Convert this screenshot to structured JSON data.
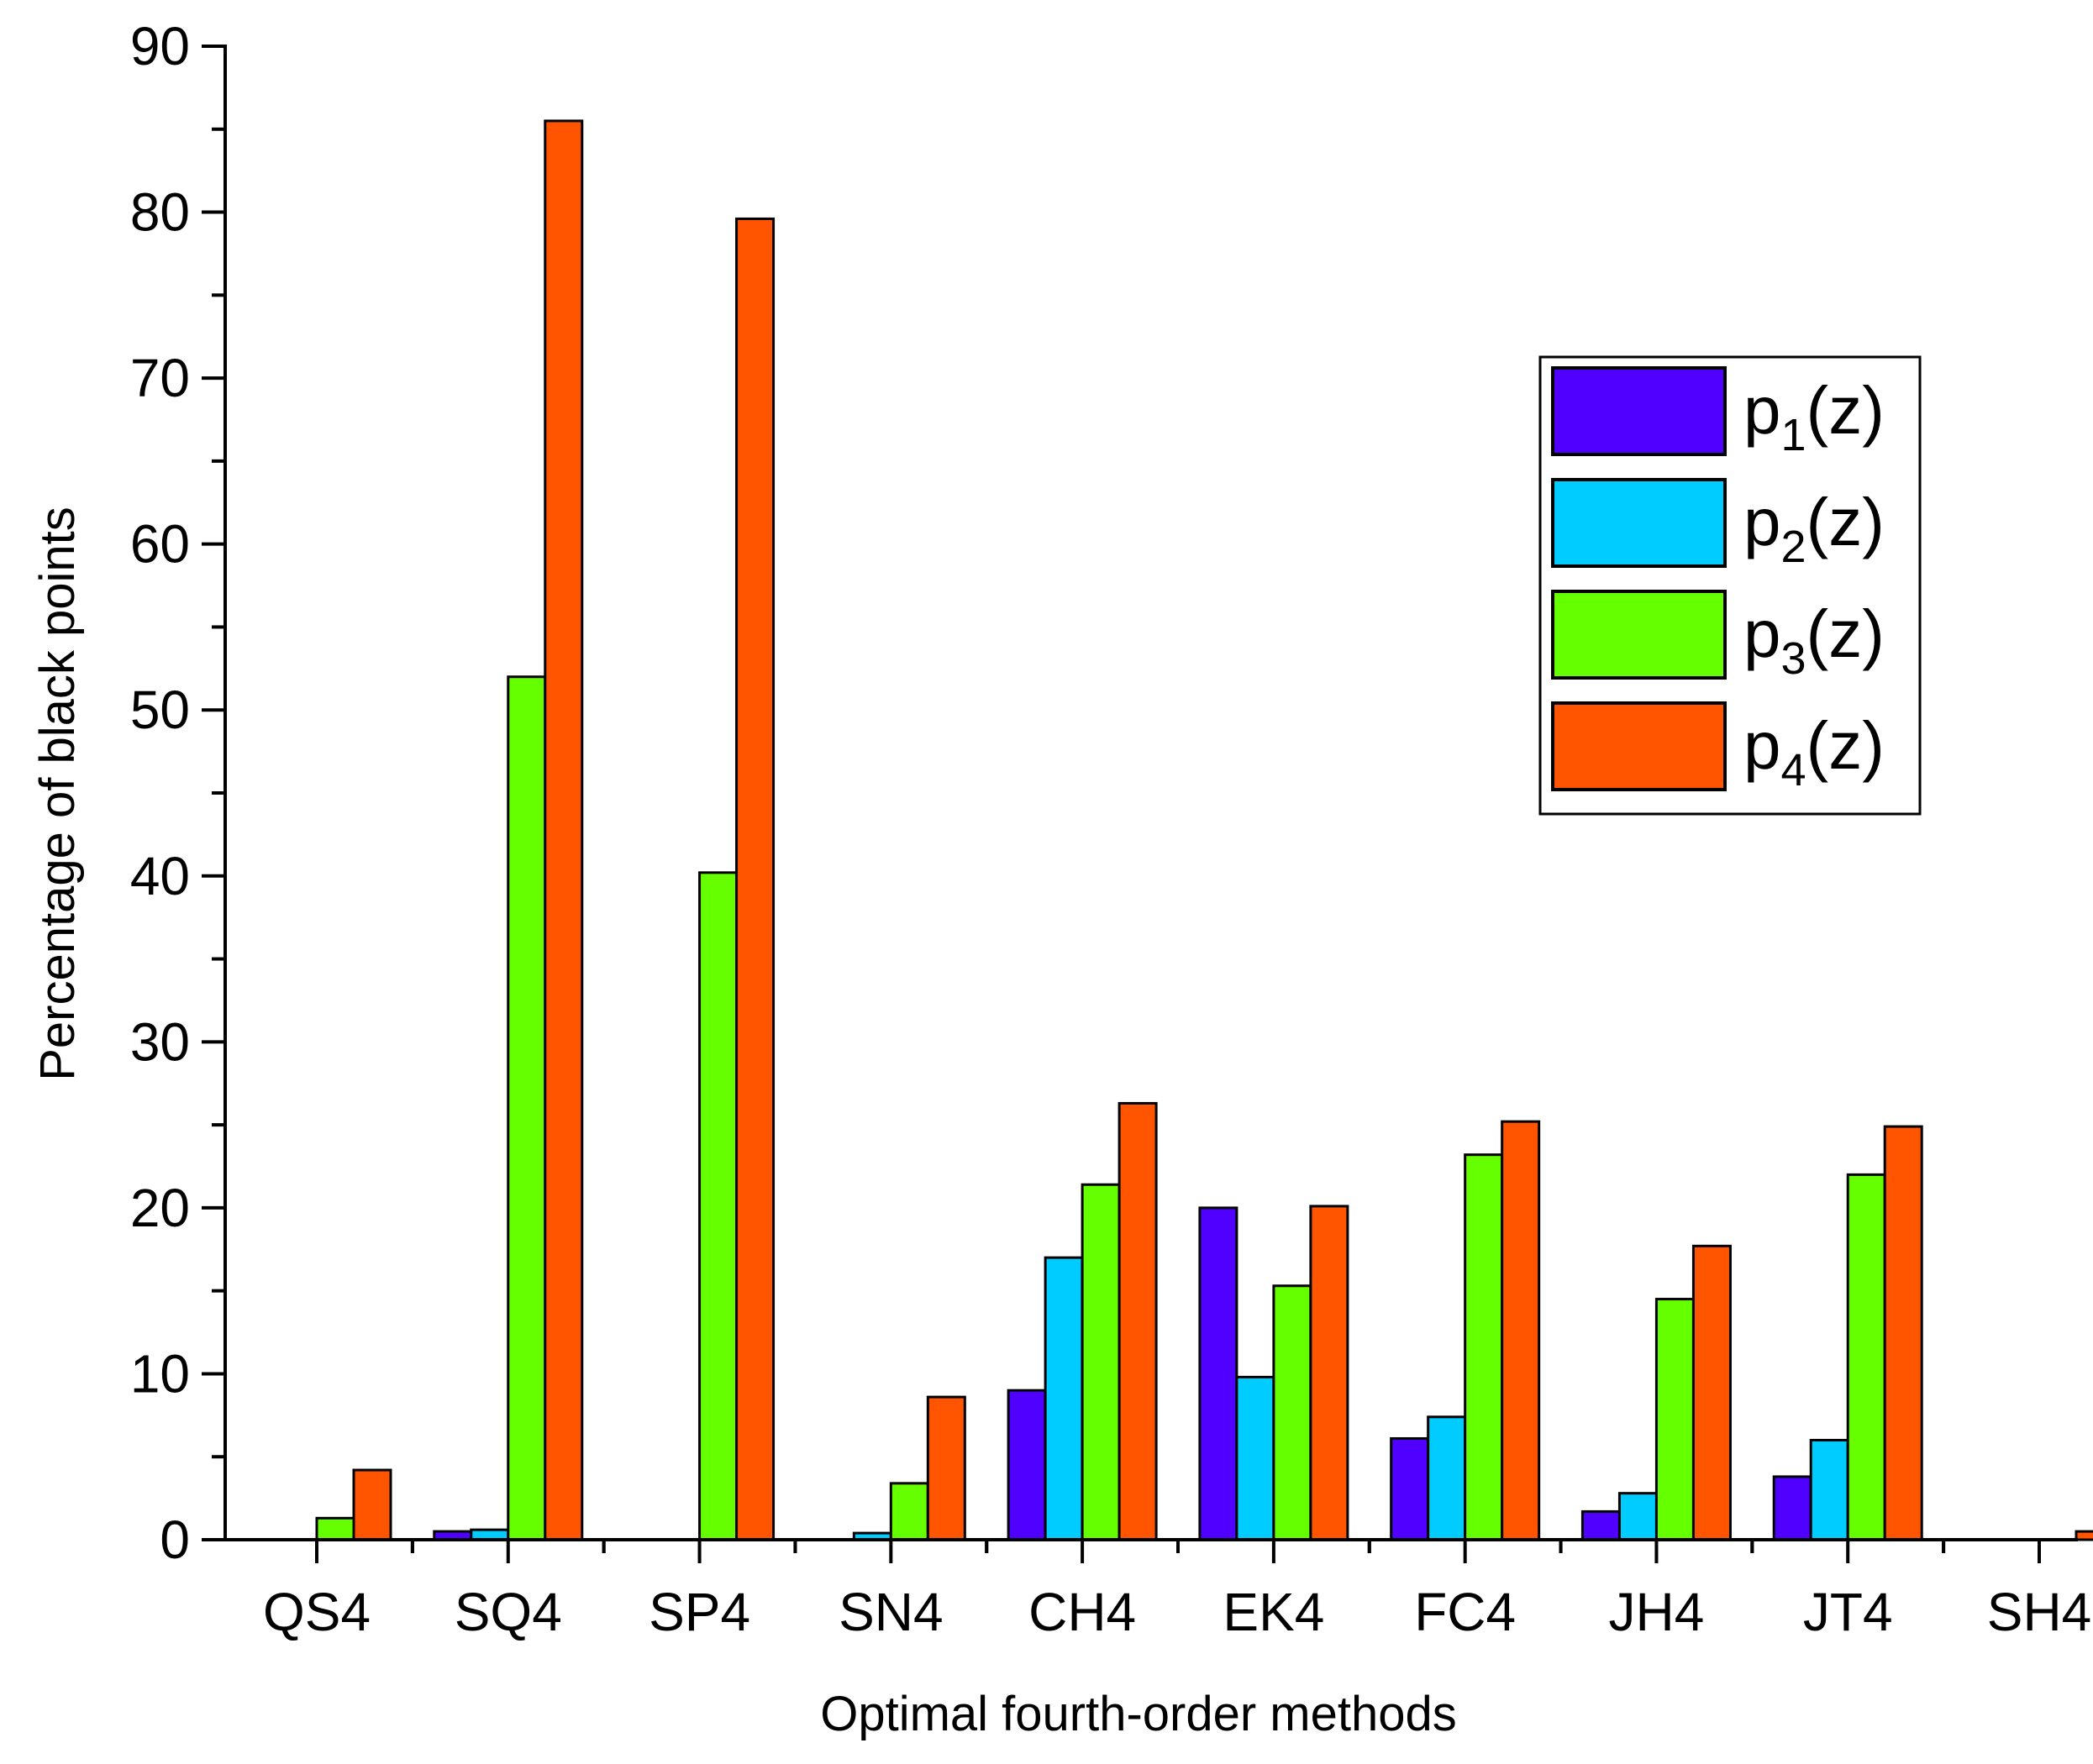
{
  "chart_data": {
    "type": "bar",
    "title": "",
    "xlabel": "Optimal fourth-order methods",
    "ylabel": "Percentage of black points",
    "ylim": [
      0,
      90
    ],
    "yticks": [
      0,
      10,
      20,
      30,
      40,
      50,
      60,
      70,
      80,
      90
    ],
    "grid": false,
    "legend_position": "top-right",
    "categories": [
      "QS4",
      "SQ4",
      "SP4",
      "SN4",
      "CH4",
      "EK4",
      "FC4",
      "JH4",
      "JT4",
      "SH4"
    ],
    "series": [
      {
        "name": "p1(z)",
        "base": "p",
        "sub": "1",
        "suffix": "(z)",
        "color": "#5000ff",
        "values": [
          0,
          0.5,
          0,
          0,
          9.0,
          20.0,
          6.1,
          1.7,
          3.8,
          0
        ]
      },
      {
        "name": "p2(z)",
        "base": "p",
        "sub": "2",
        "suffix": "(z)",
        "color": "#00ccff",
        "values": [
          0,
          0.6,
          0,
          0.4,
          17.0,
          9.8,
          7.4,
          2.8,
          6.0,
          0
        ]
      },
      {
        "name": "p3(z)",
        "base": "p",
        "sub": "3",
        "suffix": "(z)",
        "color": "#66ff00",
        "values": [
          1.3,
          52.0,
          40.2,
          3.4,
          21.4,
          15.3,
          23.2,
          14.5,
          22.0,
          0
        ]
      },
      {
        "name": "p4(z)",
        "base": "p",
        "sub": "4",
        "suffix": "(z)",
        "color": "#ff5500",
        "values": [
          4.2,
          85.5,
          79.6,
          8.6,
          26.3,
          20.1,
          25.2,
          17.7,
          24.9,
          0.5
        ]
      }
    ]
  }
}
